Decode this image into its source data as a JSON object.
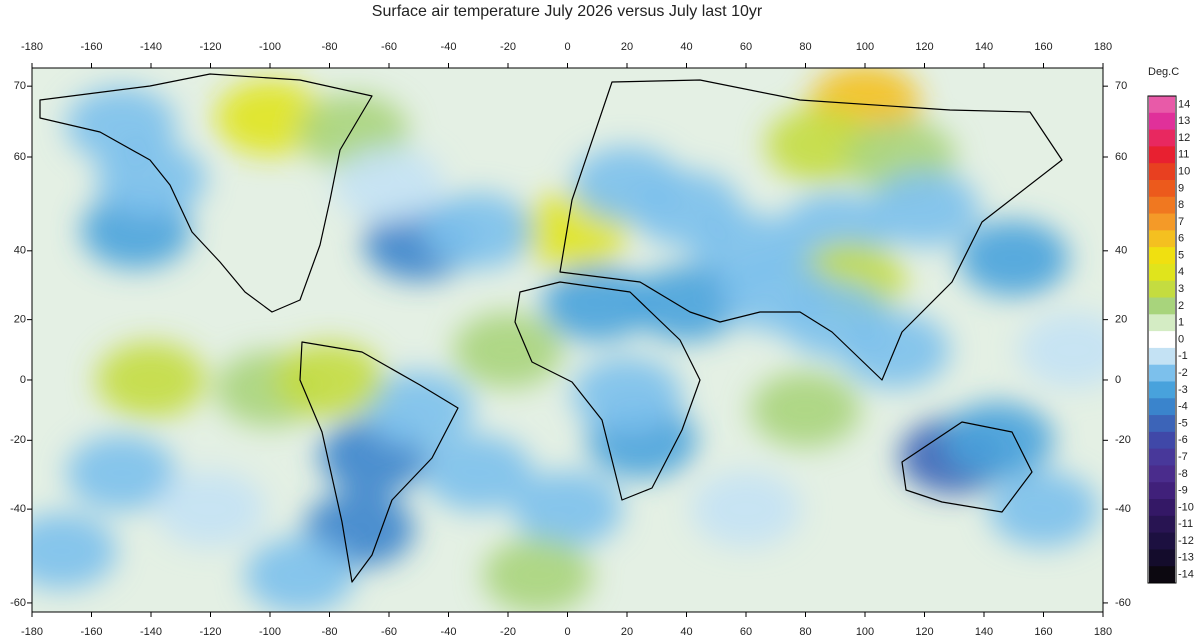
{
  "chart_data": {
    "type": "map",
    "title": "Surface air temperature July 2026 versus July last 10yr",
    "xlim": [
      -180,
      180
    ],
    "xticks": [
      -180,
      -160,
      -140,
      -120,
      -100,
      -80,
      -60,
      -40,
      -20,
      0,
      20,
      40,
      60,
      80,
      100,
      120,
      140,
      160,
      180
    ],
    "ylim": [
      -61.5,
      72
    ],
    "yticks": [
      70,
      60,
      40,
      20,
      0,
      -20,
      -40,
      -60
    ],
    "projection": "mercator",
    "colorbar": {
      "label": "Deg.C",
      "ticks": [
        14,
        13,
        12,
        11,
        10,
        9,
        8,
        7,
        6,
        5,
        4,
        3,
        2,
        1,
        0,
        -1,
        -2,
        -3,
        -4,
        -5,
        -6,
        -7,
        -8,
        -9,
        -10,
        -11,
        -12,
        -13,
        -14
      ],
      "colors": [
        "#e85aa8",
        "#e0309a",
        "#e82860",
        "#e82030",
        "#e84020",
        "#ec5a1c",
        "#f07820",
        "#f49a28",
        "#f4c020",
        "#f0e010",
        "#e0e41c",
        "#c4dc40",
        "#a8d47c",
        "#d4ecc4",
        "#ffffff",
        "#c4e2f4",
        "#7cc0ec",
        "#48a2dc",
        "#3a84cc",
        "#3c64b8",
        "#4048a8",
        "#48389a",
        "#4a2c8c",
        "#40207a",
        "#341866",
        "#281452",
        "#1c1040",
        "#140c2c",
        "#0c0810"
      ]
    },
    "anomalies": [
      {
        "lon": 100,
        "lat": 68,
        "value": 6
      },
      {
        "lon": 85,
        "lat": 62,
        "value": 2.5
      },
      {
        "lon": 112,
        "lat": 60,
        "value": 2
      },
      {
        "lon": -100,
        "lat": 66,
        "value": 3.5
      },
      {
        "lon": -72,
        "lat": 64,
        "value": 2
      },
      {
        "lon": 2,
        "lat": 45,
        "value": 4
      },
      {
        "lon": -145,
        "lat": 45,
        "value": -3
      },
      {
        "lon": -140,
        "lat": 56,
        "value": -2
      },
      {
        "lon": -150,
        "lat": 65,
        "value": -2
      },
      {
        "lon": -50,
        "lat": 42,
        "value": -4
      },
      {
        "lon": -30,
        "lat": 45,
        "value": -2.5
      },
      {
        "lon": -60,
        "lat": 55,
        "value": -1.5
      },
      {
        "lon": 20,
        "lat": 55,
        "value": -2
      },
      {
        "lon": 40,
        "lat": 50,
        "value": -2
      },
      {
        "lon": 60,
        "lat": 40,
        "value": -2
      },
      {
        "lon": 90,
        "lat": 45,
        "value": -2
      },
      {
        "lon": 150,
        "lat": 38,
        "value": -3.5
      },
      {
        "lon": 120,
        "lat": 50,
        "value": -2
      },
      {
        "lon": 95,
        "lat": 32,
        "value": 2.5
      },
      {
        "lon": 10,
        "lat": 25,
        "value": -3
      },
      {
        "lon": 40,
        "lat": 25,
        "value": -3
      },
      {
        "lon": 70,
        "lat": 28,
        "value": -2
      },
      {
        "lon": 90,
        "lat": 20,
        "value": -2
      },
      {
        "lon": 110,
        "lat": 10,
        "value": -2
      },
      {
        "lon": 25,
        "lat": -20,
        "value": -3
      },
      {
        "lon": 20,
        "lat": -5,
        "value": -2
      },
      {
        "lon": -65,
        "lat": -25,
        "value": -4.5
      },
      {
        "lon": -70,
        "lat": -45,
        "value": -4
      },
      {
        "lon": -50,
        "lat": -10,
        "value": -2
      },
      {
        "lon": 130,
        "lat": -25,
        "value": -5
      },
      {
        "lon": 145,
        "lat": -20,
        "value": -3
      },
      {
        "lon": -140,
        "lat": 0,
        "value": 2.5
      },
      {
        "lon": -100,
        "lat": -3,
        "value": 2
      },
      {
        "lon": -80,
        "lat": 0,
        "value": 3
      },
      {
        "lon": -150,
        "lat": -30,
        "value": -2
      },
      {
        "lon": -120,
        "lat": -40,
        "value": -1.5
      },
      {
        "lon": 160,
        "lat": -40,
        "value": -2
      },
      {
        "lon": 60,
        "lat": -40,
        "value": -1.5
      },
      {
        "lon": 0,
        "lat": -40,
        "value": -2
      },
      {
        "lon": -30,
        "lat": -30,
        "value": -2
      },
      {
        "lon": -10,
        "lat": -55,
        "value": 2
      },
      {
        "lon": -90,
        "lat": -55,
        "value": -2
      },
      {
        "lon": 80,
        "lat": -10,
        "value": 1.5
      },
      {
        "lon": -20,
        "lat": 10,
        "value": 1.5
      },
      {
        "lon": -170,
        "lat": -50,
        "value": -2
      },
      {
        "lon": 170,
        "lat": 10,
        "value": -1.5
      }
    ]
  }
}
